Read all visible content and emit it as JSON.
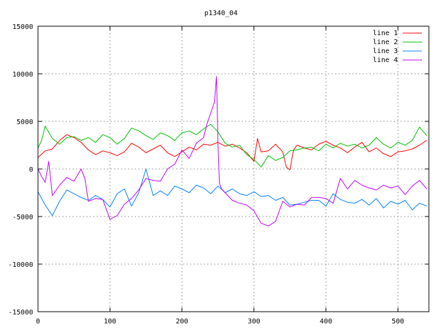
{
  "chart_data": {
    "type": "line",
    "title": "p1340_04",
    "xlabel": "",
    "ylabel": "",
    "xlim": [
      0,
      543
    ],
    "ylim": [
      -15000,
      15000
    ],
    "x_ticks": [
      0,
      100,
      200,
      300,
      400,
      500
    ],
    "y_ticks": [
      -15000,
      -10000,
      -5000,
      0,
      5000,
      10000,
      15000
    ],
    "x_tick_labels": [
      "0",
      "100",
      "200",
      "300",
      "400",
      "500"
    ],
    "y_tick_labels": [
      "-15000",
      "-10000",
      "-5000",
      "0",
      "5000",
      "10000",
      "15000"
    ],
    "grid": true,
    "legend_position": "top-right",
    "series": [
      {
        "name": "line 1",
        "color": "#ff0000",
        "x": [
          0,
          10,
          20,
          30,
          40,
          50,
          60,
          70,
          80,
          90,
          100,
          110,
          120,
          130,
          140,
          150,
          160,
          170,
          180,
          190,
          200,
          210,
          220,
          230,
          240,
          250,
          260,
          270,
          280,
          290,
          300,
          305,
          310,
          320,
          330,
          340,
          345,
          350,
          355,
          360,
          370,
          380,
          390,
          400,
          410,
          420,
          430,
          440,
          450,
          460,
          470,
          480,
          490,
          500,
          510,
          520,
          530,
          540
        ],
        "y": [
          1200,
          1900,
          2100,
          3000,
          3600,
          3300,
          2800,
          2000,
          1500,
          1900,
          1700,
          1400,
          1800,
          2700,
          2300,
          1700,
          2100,
          2500,
          1700,
          1300,
          1800,
          2300,
          2000,
          2600,
          2500,
          2800,
          2400,
          2600,
          2200,
          1700,
          800,
          3200,
          1800,
          1900,
          2600,
          1800,
          200,
          -100,
          2000,
          2500,
          2200,
          2000,
          2600,
          2900,
          2500,
          2200,
          1700,
          2300,
          2800,
          1800,
          2200,
          1600,
          1300,
          1800,
          1900,
          2100,
          2500,
          3000
        ]
      },
      {
        "name": "line 2",
        "color": "#00c000",
        "x": [
          0,
          5,
          10,
          20,
          30,
          40,
          50,
          60,
          70,
          80,
          90,
          100,
          110,
          120,
          130,
          140,
          150,
          160,
          170,
          180,
          190,
          200,
          210,
          220,
          230,
          240,
          245,
          250,
          260,
          270,
          280,
          290,
          300,
          310,
          320,
          330,
          340,
          350,
          360,
          370,
          380,
          390,
          400,
          410,
          420,
          430,
          440,
          450,
          460,
          470,
          480,
          490,
          500,
          510,
          520,
          530,
          540
        ],
        "y": [
          2200,
          3000,
          4500,
          3200,
          2600,
          3300,
          3400,
          3000,
          3300,
          2800,
          3600,
          3300,
          2600,
          3200,
          4300,
          4000,
          3500,
          3100,
          3800,
          3500,
          3000,
          3800,
          4000,
          3600,
          4200,
          4700,
          4300,
          3900,
          2700,
          2300,
          2500,
          1500,
          1000,
          200,
          1400,
          900,
          1200,
          1900,
          2000,
          2200,
          2300,
          1900,
          2600,
          2200,
          2700,
          2400,
          2600,
          2200,
          2500,
          3300,
          2600,
          2200,
          2800,
          2500,
          3000,
          4400,
          3500
        ]
      },
      {
        "name": "line 3",
        "color": "#0080ff",
        "x": [
          0,
          10,
          20,
          30,
          40,
          50,
          60,
          70,
          80,
          90,
          100,
          110,
          120,
          130,
          140,
          150,
          160,
          170,
          180,
          190,
          200,
          210,
          220,
          230,
          240,
          250,
          260,
          270,
          280,
          290,
          300,
          310,
          320,
          330,
          340,
          350,
          360,
          370,
          380,
          390,
          400,
          410,
          420,
          430,
          440,
          450,
          460,
          470,
          480,
          490,
          500,
          510,
          520,
          530,
          540
        ],
        "y": [
          -2400,
          -3800,
          -4900,
          -3400,
          -2200,
          -2600,
          -3000,
          -3300,
          -2800,
          -3200,
          -4000,
          -2600,
          -2100,
          -3900,
          -2500,
          0,
          -2800,
          -2300,
          -2800,
          -1800,
          -2100,
          -2500,
          -1700,
          -2000,
          -2600,
          -1800,
          -2500,
          -2100,
          -2600,
          -2800,
          -2400,
          -2900,
          -2800,
          -3300,
          -3000,
          -3800,
          -3700,
          -3500,
          -3300,
          -3300,
          -3900,
          -2600,
          -3200,
          -3500,
          -3600,
          -3200,
          -3800,
          -3100,
          -4100,
          -3400,
          -3700,
          -3300,
          -4300,
          -3600,
          -3900
        ]
      },
      {
        "name": "line 4",
        "color": "#c000ff",
        "x": [
          0,
          5,
          10,
          15,
          18,
          20,
          30,
          40,
          50,
          60,
          65,
          70,
          80,
          90,
          100,
          110,
          120,
          130,
          140,
          150,
          160,
          170,
          180,
          190,
          200,
          210,
          220,
          230,
          235,
          240,
          245,
          248,
          250,
          252,
          255,
          260,
          270,
          280,
          290,
          300,
          310,
          320,
          330,
          340,
          350,
          360,
          370,
          380,
          390,
          400,
          410,
          420,
          430,
          440,
          450,
          460,
          470,
          480,
          490,
          500,
          510,
          520,
          530,
          540
        ],
        "y": [
          0,
          -800,
          -1400,
          800,
          -1400,
          -2800,
          -1700,
          -900,
          -1300,
          0,
          -1000,
          -3400,
          -3100,
          -3200,
          -5300,
          -4900,
          -3700,
          -3100,
          -2200,
          -1000,
          -1200,
          -1300,
          0,
          500,
          2000,
          1100,
          2700,
          3300,
          4800,
          5900,
          7000,
          9700,
          2700,
          -1500,
          -2100,
          -2500,
          -3300,
          -3600,
          -3800,
          -4400,
          -5700,
          -6000,
          -5500,
          -3400,
          -4000,
          -3700,
          -3800,
          -3000,
          -3000,
          -3100,
          -3600,
          -1000,
          -2100,
          -1200,
          -1700,
          -2000,
          -2200,
          -1700,
          -2000,
          -1800,
          -2700,
          -1800,
          -1200,
          -2100
        ]
      }
    ]
  }
}
